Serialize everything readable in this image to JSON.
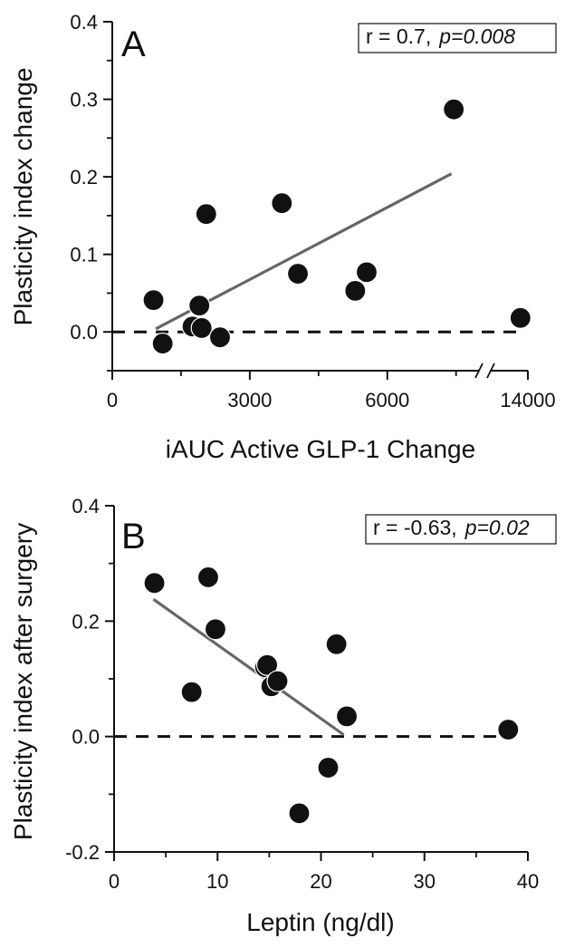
{
  "chart_data": [
    {
      "panel": "A",
      "type": "scatter",
      "xlabel": "iAUC Active GLP-1 Change",
      "ylabel": "Plasticity index change",
      "annotation": {
        "r": "r = 0.7,",
        "p": "p=0.008"
      },
      "xlim": [
        0,
        14000
      ],
      "ylim": [
        -0.05,
        0.4
      ],
      "x_break": {
        "from": 8000,
        "to": 13000
      },
      "x_ticks": [
        0,
        3000,
        6000,
        14000
      ],
      "y_ticks": [
        0.0,
        0.1,
        0.2,
        0.3,
        0.4
      ],
      "y_tick_labels": [
        "0.0",
        "0.1",
        "0.2",
        "0.3",
        "0.4"
      ],
      "x": [
        900,
        1100,
        1750,
        1900,
        1950,
        2050,
        2350,
        3700,
        4050,
        5300,
        5550,
        7450,
        13800
      ],
      "y": [
        0.041,
        -0.015,
        0.007,
        0.034,
        0.005,
        0.152,
        -0.007,
        0.166,
        0.075,
        0.053,
        0.077,
        0.287,
        0.018
      ],
      "fit_line": {
        "x": [
          950,
          7400
        ],
        "y": [
          0.004,
          0.204
        ]
      },
      "reference_y": 0,
      "colors": {
        "points": "#111111",
        "fit": "#666666",
        "axes": "#111111"
      }
    },
    {
      "panel": "B",
      "type": "scatter",
      "xlabel": "Leptin (ng/dl)",
      "ylabel": "Plasticity index after surgery",
      "annotation": {
        "r": "r = -0.63,",
        "p": "p=0.02"
      },
      "xlim": [
        0,
        40
      ],
      "ylim": [
        -0.2,
        0.4
      ],
      "x_ticks": [
        0,
        10,
        20,
        30,
        40
      ],
      "y_ticks": [
        -0.2,
        0.0,
        0.2,
        0.4
      ],
      "y_tick_labels": [
        "-0.2",
        "0.0",
        "0.2",
        "0.4"
      ],
      "x": [
        3.9,
        7.5,
        9.1,
        9.8,
        14.6,
        14.8,
        15.2,
        15.8,
        17.9,
        20.7,
        21.5,
        22.5,
        38.1
      ],
      "y": [
        0.266,
        0.077,
        0.276,
        0.186,
        0.12,
        0.124,
        0.087,
        0.096,
        -0.133,
        -0.054,
        0.16,
        0.035,
        0.012
      ],
      "fit_line": {
        "x": [
          3.8,
          22.2
        ],
        "y": [
          0.238,
          0.003
        ]
      },
      "reference_y": 0,
      "colors": {
        "points": "#111111",
        "fit": "#666666",
        "axes": "#111111"
      }
    }
  ]
}
